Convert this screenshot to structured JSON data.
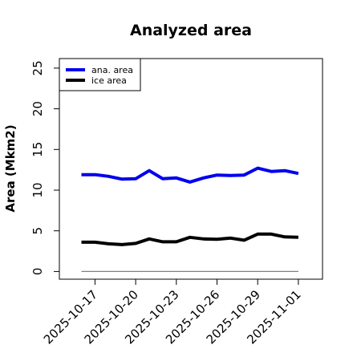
{
  "chart_data": {
    "type": "line",
    "title": "Analyzed area",
    "xlabel": "",
    "ylabel": "Area (Mkm2)",
    "x": [
      "2025-10-16",
      "2025-10-17",
      "2025-10-18",
      "2025-10-19",
      "2025-10-20",
      "2025-10-21",
      "2025-10-22",
      "2025-10-23",
      "2025-10-24",
      "2025-10-25",
      "2025-10-26",
      "2025-10-27",
      "2025-10-28",
      "2025-10-29",
      "2025-10-30",
      "2025-10-31",
      "2025-11-01"
    ],
    "x_tick_labels": [
      "2025-10-17",
      "2025-10-20",
      "2025-10-23",
      "2025-10-26",
      "2025-10-29",
      "2025-11-01"
    ],
    "highlight_tick": "2025-10-23",
    "highlight_color": "#228B22",
    "ylim": [
      0,
      26
    ],
    "y_ticks": [
      0,
      5,
      10,
      15,
      20,
      25
    ],
    "legend_position": "top-left",
    "grid": false,
    "series": [
      {
        "name": "ana. area",
        "color": "#0000ee",
        "values": [
          11.9,
          11.9,
          11.7,
          11.35,
          11.4,
          12.4,
          11.4,
          11.5,
          11.0,
          11.5,
          11.85,
          11.8,
          11.85,
          12.7,
          12.3,
          12.4,
          12.05
        ]
      },
      {
        "name": "ice area",
        "color": "#000000",
        "values": [
          3.6,
          3.6,
          3.4,
          3.3,
          3.45,
          4.0,
          3.65,
          3.65,
          4.2,
          4.0,
          3.95,
          4.1,
          3.85,
          4.6,
          4.6,
          4.25,
          4.2
        ]
      }
    ],
    "baseline": {
      "value": 0,
      "color": "#808080"
    }
  }
}
